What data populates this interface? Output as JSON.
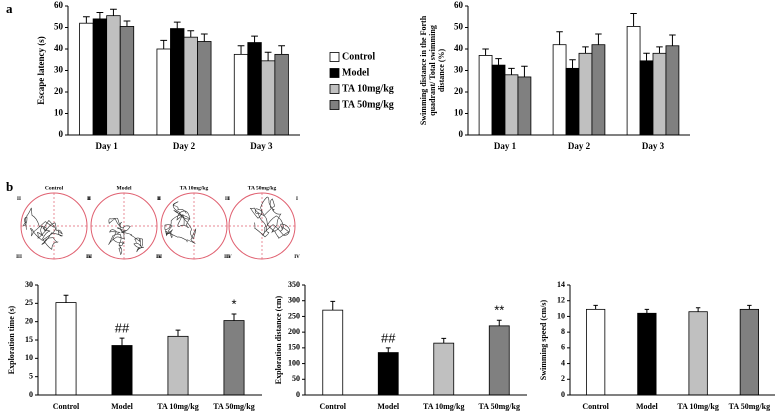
{
  "panel_labels": [
    "a",
    "b"
  ],
  "track_panels": {
    "titles": [
      "Control",
      "Model",
      "TA 10mg/kg",
      "TA 50mg/kg"
    ],
    "quadrant_labels": [
      "I",
      "II",
      "III",
      "IV"
    ]
  },
  "chart_data": [
    {
      "type": "bar",
      "ylabel": [
        "Escape latency (s)"
      ],
      "categories": [
        "Day 1",
        "Day 2",
        "Day 3"
      ],
      "series": [
        {
          "name": "Control",
          "color": "#ffffff",
          "values": [
            52,
            40,
            37.5
          ],
          "errors": [
            3,
            4,
            4
          ]
        },
        {
          "name": "Model",
          "color": "#000000",
          "values": [
            54,
            49.5,
            43
          ],
          "errors": [
            3,
            3,
            3
          ]
        },
        {
          "name": "TA 10mg/kg",
          "color": "#c0c0c0",
          "values": [
            55.5,
            45.5,
            34.5
          ],
          "errors": [
            3,
            3,
            4
          ]
        },
        {
          "name": "TA 50mg/kg",
          "color": "#808080",
          "values": [
            50.5,
            43.5,
            37.5
          ],
          "errors": [
            2.5,
            3.5,
            4
          ]
        }
      ],
      "ylim": [
        0,
        60
      ],
      "yticks": [
        0,
        10,
        20,
        30,
        40,
        50,
        60
      ],
      "legend": "right"
    },
    {
      "type": "bar",
      "ylabel": [
        "Swimming distance in the Forth",
        "quadrant/ Total swimming",
        "distance (%)"
      ],
      "categories": [
        "Day 1",
        "Day 2",
        "Day 3"
      ],
      "series": [
        {
          "color": "#ffffff",
          "values": [
            37,
            42,
            50.5
          ],
          "errors": [
            3,
            6,
            6
          ]
        },
        {
          "color": "#000000",
          "values": [
            32.5,
            31,
            34.5
          ],
          "errors": [
            3,
            4,
            3.5
          ]
        },
        {
          "color": "#c0c0c0",
          "values": [
            28,
            38,
            38
          ],
          "errors": [
            3,
            3,
            3
          ]
        },
        {
          "color": "#808080",
          "values": [
            27,
            42,
            41.5
          ],
          "errors": [
            5,
            5,
            5
          ]
        }
      ],
      "ylim": [
        0,
        60
      ],
      "yticks": [
        0,
        10,
        20,
        30,
        40,
        50,
        60
      ]
    },
    {
      "type": "bar",
      "ylabel": [
        "Exploration time (s)"
      ],
      "categories": [
        "Control",
        "Model",
        "TA 10mg/kg",
        "TA 50mg/kg"
      ],
      "values": [
        25.2,
        13.5,
        16,
        20.3
      ],
      "errors": [
        2,
        2,
        1.7,
        1.8
      ],
      "colors": [
        "#ffffff",
        "#000000",
        "#c0c0c0",
        "#808080"
      ],
      "annotations": [
        null,
        "##",
        null,
        "*"
      ],
      "ylim": [
        0,
        30
      ],
      "yticks": [
        0,
        5,
        10,
        15,
        20,
        25,
        30
      ]
    },
    {
      "type": "bar",
      "ylabel": [
        "Exploration distance (cm)"
      ],
      "categories": [
        "Control",
        "Model",
        "TA 10mg/kg",
        "TA 50mg/kg"
      ],
      "values": [
        270,
        135,
        165,
        220
      ],
      "errors": [
        28,
        15,
        15,
        18
      ],
      "colors": [
        "#ffffff",
        "#000000",
        "#c0c0c0",
        "#808080"
      ],
      "annotations": [
        null,
        "##",
        null,
        "**"
      ],
      "ylim": [
        0,
        350
      ],
      "yticks": [
        0,
        50,
        100,
        150,
        200,
        250,
        300,
        350
      ]
    },
    {
      "type": "bar",
      "ylabel": [
        "Swimming speed (cm/s)"
      ],
      "categories": [
        "Control",
        "Model",
        "TA 10mg/kg",
        "TA 50mg/kg"
      ],
      "values": [
        10.9,
        10.4,
        10.6,
        10.9
      ],
      "errors": [
        0.5,
        0.5,
        0.5,
        0.5
      ],
      "colors": [
        "#ffffff",
        "#000000",
        "#c0c0c0",
        "#808080"
      ],
      "ylim": [
        0,
        14
      ],
      "yticks": [
        0,
        2,
        4,
        6,
        8,
        10,
        12,
        14
      ]
    }
  ]
}
